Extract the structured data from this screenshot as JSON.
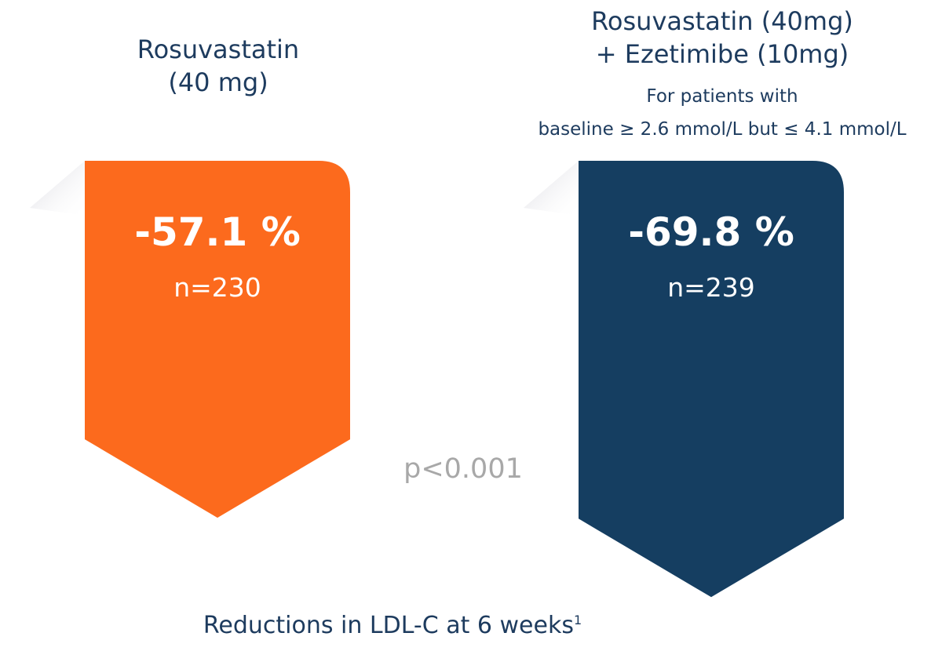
{
  "chart_data": {
    "type": "bar",
    "categories": [
      "Rosuvastatin (40 mg)",
      "Rosuvastatin (40mg) + Ezetimibe (10mg)"
    ],
    "series": [
      {
        "values": [
          -57.1,
          -69.8
        ],
        "labels": [
          "-57.1 %",
          "-69.8 %"
        ]
      }
    ],
    "n": [
      "n=230",
      "n=239"
    ],
    "bars": [
      {
        "title_lines": [
          "Rosuvastatin",
          "(40 mg)"
        ],
        "note_lines": [],
        "value": -57.1,
        "value_label": "-57.1 %",
        "n_label": "n=230",
        "color": "#fc6a1d"
      },
      {
        "title_lines": [
          "Rosuvastatin (40mg)",
          "+ Ezetimibe (10mg)"
        ],
        "note_lines": [
          "For patients with",
          "baseline ≥ 2.6 mmol/L but ≤ 4.1 mmol/L"
        ],
        "value": -69.8,
        "value_label": "-69.8 %",
        "n_label": "n=239",
        "color": "#153e61"
      }
    ],
    "annotation": "p<0.001",
    "caption": "Reductions in LDL-C at 6 weeks",
    "caption_sup": "1",
    "ylim": [
      -80,
      0
    ]
  }
}
